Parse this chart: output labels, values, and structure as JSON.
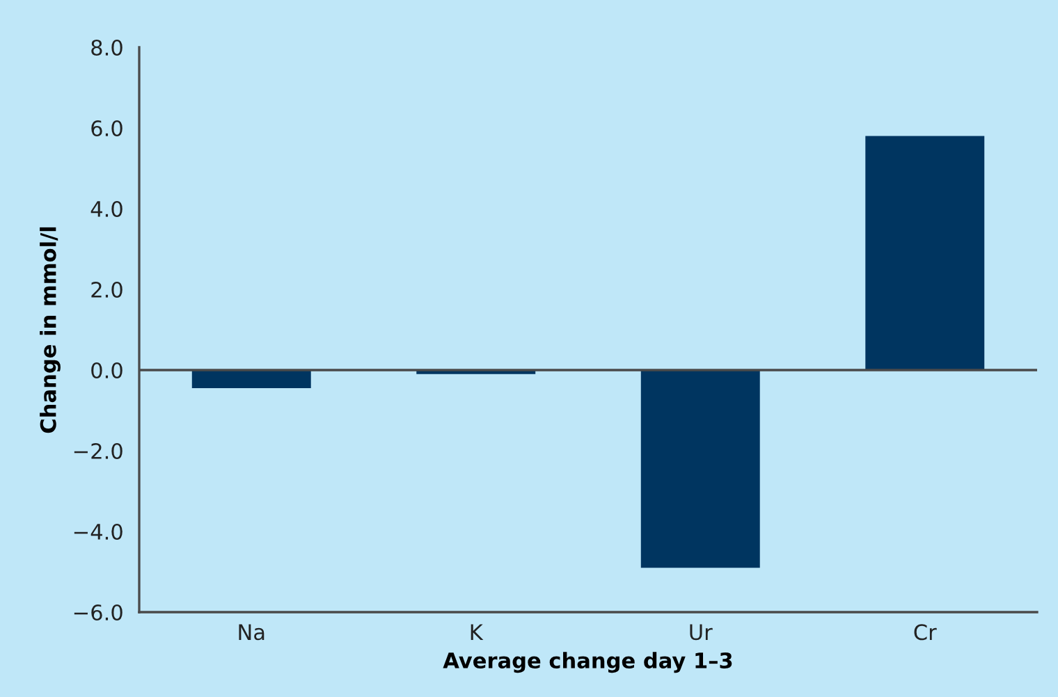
{
  "chart_data": {
    "type": "bar",
    "xlabel": "Average change day 1–3",
    "ylabel": "Change in mmol/l",
    "categories": [
      "Na",
      "K",
      "Ur",
      "Cr"
    ],
    "values": [
      -0.45,
      -0.1,
      -4.9,
      5.8
    ],
    "color": "#003560",
    "ylim": [
      -6,
      8
    ],
    "yticks": [
      {
        "value": -6,
        "label": "−6.0"
      },
      {
        "value": -4,
        "label": "−4.0"
      },
      {
        "value": -2,
        "label": "−2.0"
      },
      {
        "value": 0,
        "label": "0.0"
      },
      {
        "value": 2,
        "label": "2.0"
      },
      {
        "value": 4,
        "label": "4.0"
      },
      {
        "value": 6,
        "label": "6.0"
      },
      {
        "value": 8,
        "label": "8.0"
      }
    ],
    "ref_lines": [
      {
        "axis": "y",
        "value": 0,
        "color": "#4a4a4a"
      }
    ],
    "grid": false,
    "legend": false
  }
}
